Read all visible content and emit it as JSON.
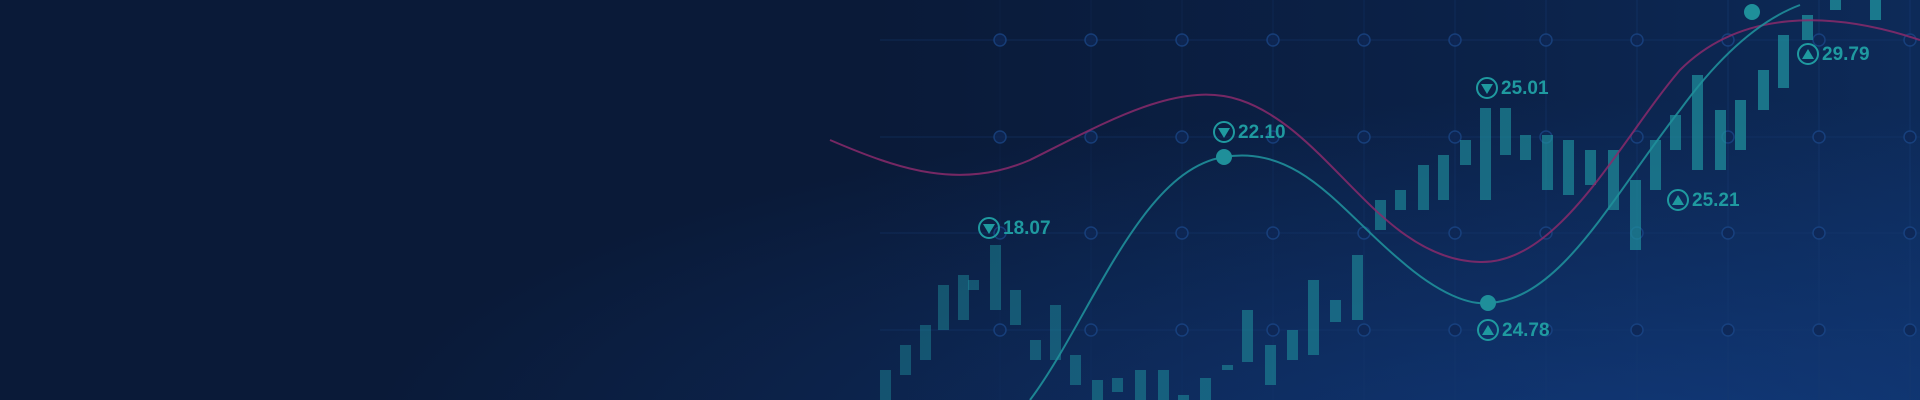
{
  "banner": {
    "colors": {
      "background": "#0a1a38",
      "grid": "#15386f",
      "candle": "#1f8f9c",
      "teal_line": "#1f8f9a",
      "magenta_line": "#8a2a6b",
      "label": "#1f9aa0"
    },
    "markers": [
      {
        "id": "m1",
        "value": "18.07",
        "direction": "down"
      },
      {
        "id": "m2",
        "value": "22.10",
        "direction": "down"
      },
      {
        "id": "m3",
        "value": "25.01",
        "direction": "down"
      },
      {
        "id": "m4",
        "value": "24.78",
        "direction": "up"
      },
      {
        "id": "m5",
        "value": "25.21",
        "direction": "up"
      },
      {
        "id": "m6",
        "value": "29.79",
        "direction": "up"
      }
    ]
  }
}
